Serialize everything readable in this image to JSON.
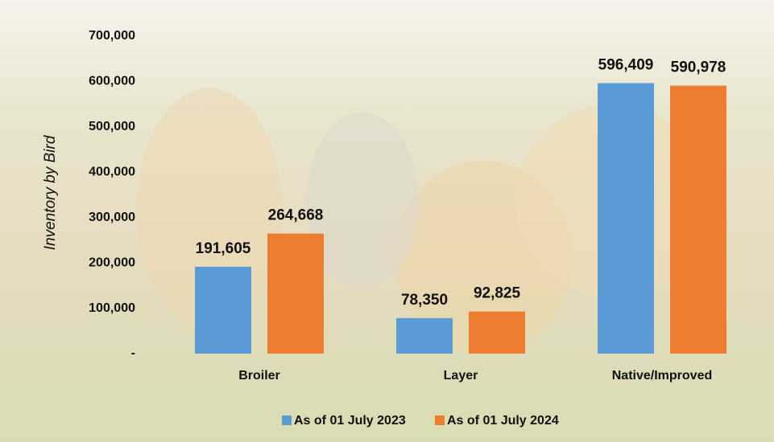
{
  "chart_data": {
    "type": "bar",
    "y_label": "Inventory by Bird",
    "categories": [
      "Broiler",
      "Layer",
      "Native/Improved"
    ],
    "series": [
      {
        "name": "As of 01 July 2023",
        "color": "#5b9bd5",
        "values": [
          191605,
          78350,
          596409
        ],
        "value_labels": [
          "191,605",
          "78,350",
          "596,409"
        ]
      },
      {
        "name": "As of 01 July 2024",
        "color": "#ed7d31",
        "values": [
          264668,
          92825,
          590978
        ],
        "value_labels": [
          "264,668",
          "92,825",
          "590,978"
        ]
      }
    ],
    "ylim": [
      0,
      700000
    ],
    "yticks": [
      {
        "value": 0,
        "label": "-"
      },
      {
        "value": 100000,
        "label": "100,000"
      },
      {
        "value": 200000,
        "label": "200,000"
      },
      {
        "value": 300000,
        "label": "300,000"
      },
      {
        "value": 400000,
        "label": "400,000"
      },
      {
        "value": 500000,
        "label": "500,000"
      },
      {
        "value": 600000,
        "label": "600,000"
      },
      {
        "value": 700000,
        "label": "700,000"
      }
    ],
    "grid": false,
    "legend": "bottom"
  }
}
